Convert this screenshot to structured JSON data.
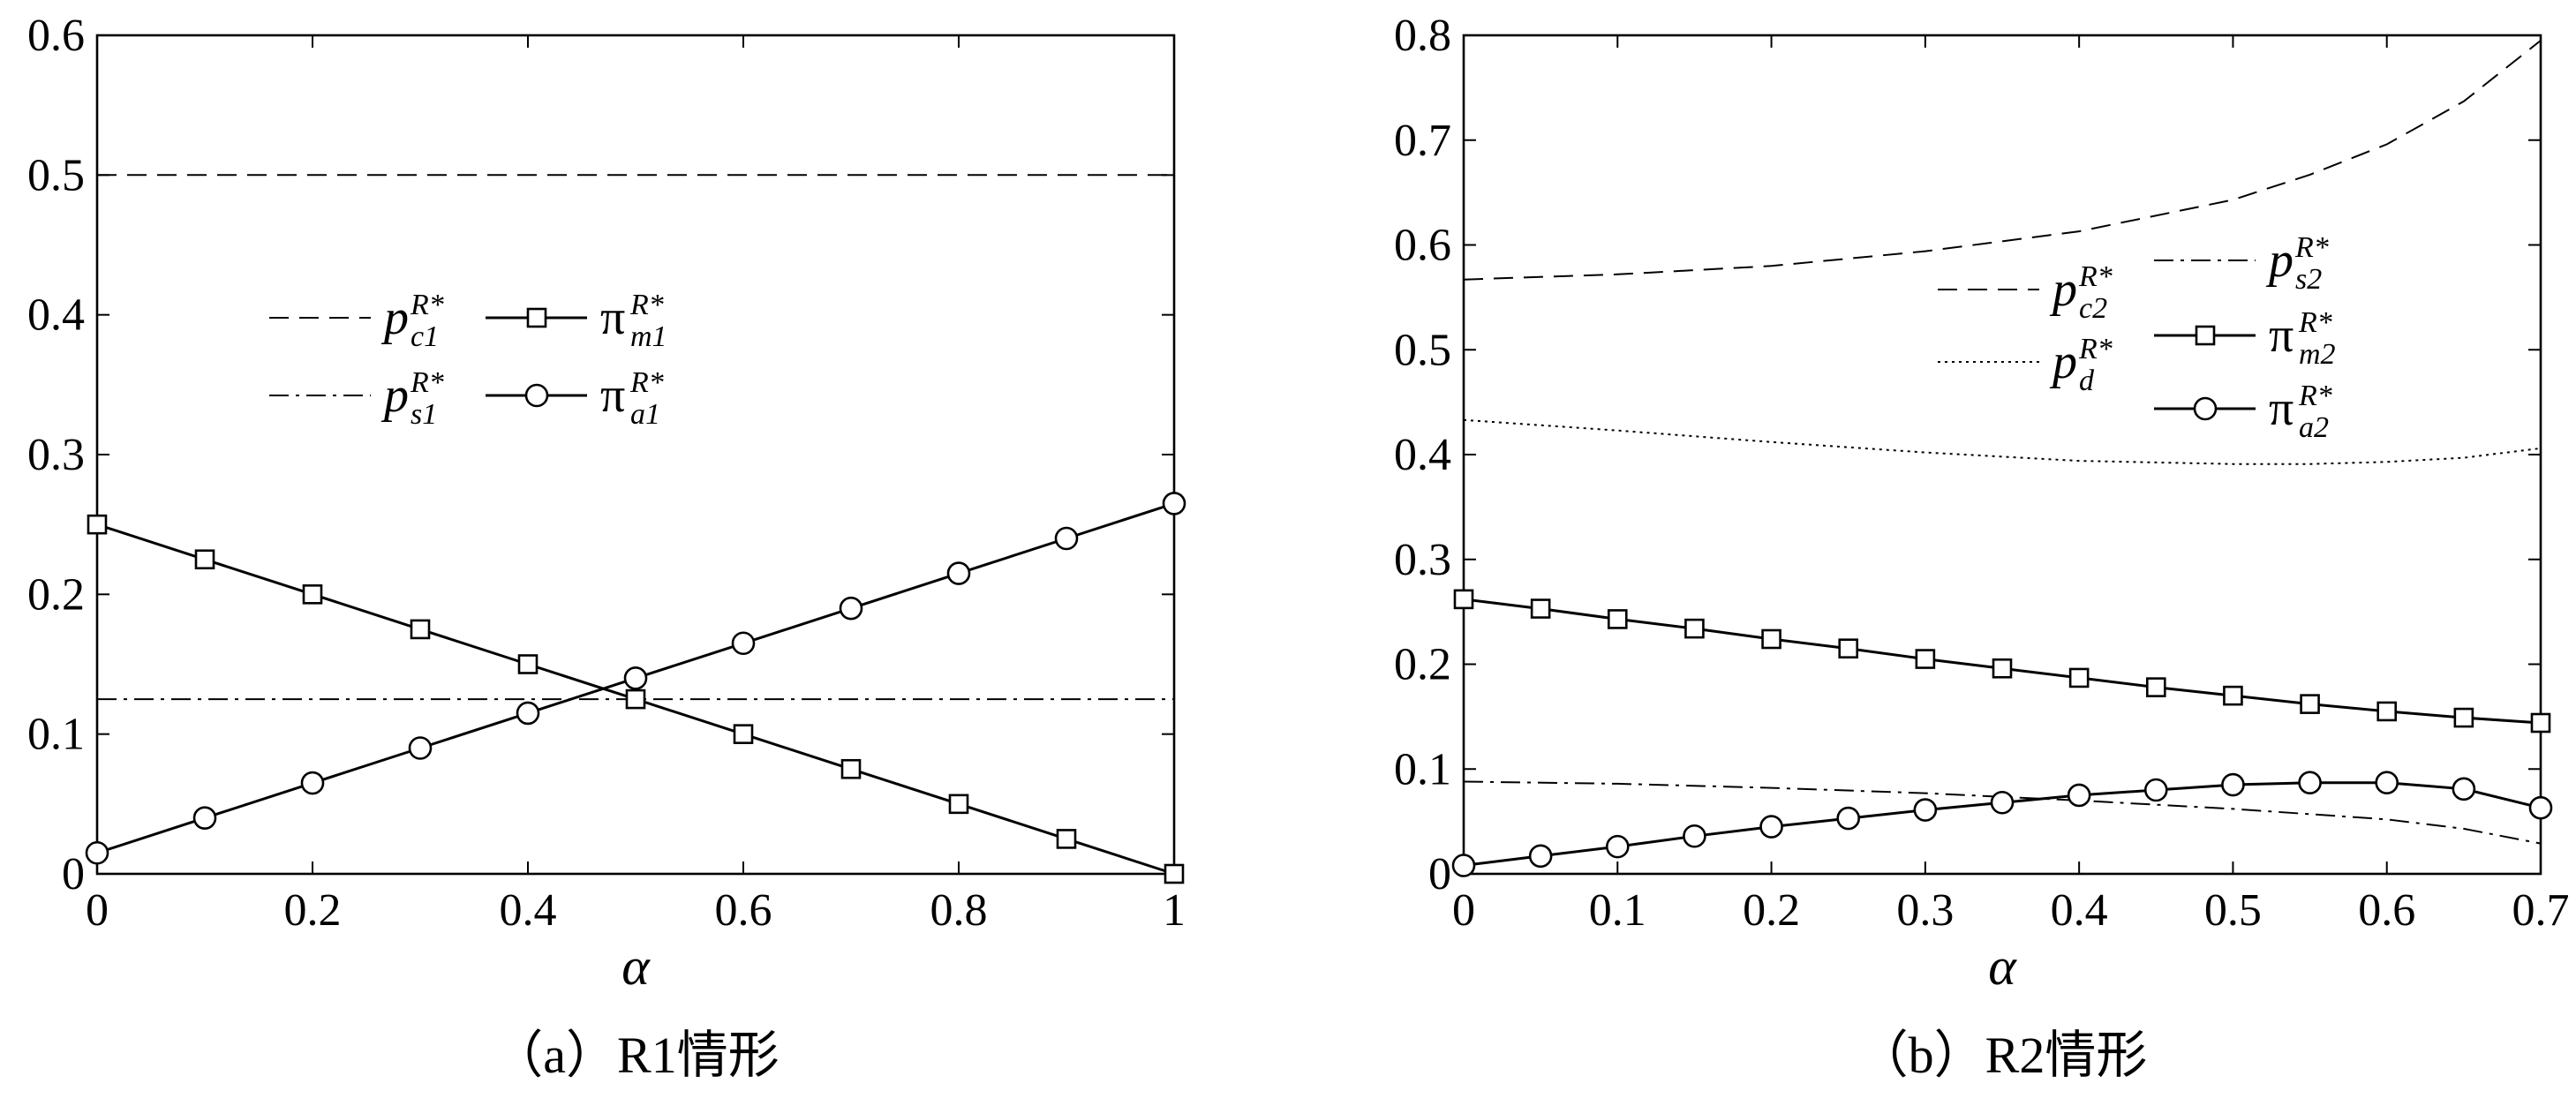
{
  "chart_data": [
    {
      "type": "line",
      "caption": "（a）R1情形",
      "xlabel": "α",
      "xlim": [
        0,
        1
      ],
      "ylim": [
        0,
        0.6
      ],
      "xticks": [
        "0",
        "0.2",
        "0.4",
        "0.6",
        "0.8",
        "1"
      ],
      "yticks": [
        "0",
        "0.1",
        "0.2",
        "0.3",
        "0.4",
        "0.5",
        "0.6"
      ],
      "grid": false,
      "legend_position": "center",
      "series": [
        {
          "name": "p_c1^R*",
          "style": "dashed",
          "marker": "none",
          "x": [
            0,
            1
          ],
          "y": [
            0.5,
            0.5
          ]
        },
        {
          "name": "p_s1^R*",
          "style": "dashdot",
          "marker": "none",
          "x": [
            0,
            1
          ],
          "y": [
            0.125,
            0.125
          ]
        },
        {
          "name": "π_m1^R*",
          "style": "solid",
          "marker": "square",
          "x": [
            0,
            0.1,
            0.2,
            0.3,
            0.4,
            0.5,
            0.6,
            0.7,
            0.8,
            0.9,
            1
          ],
          "y": [
            0.25,
            0.225,
            0.2,
            0.175,
            0.15,
            0.125,
            0.1,
            0.075,
            0.05,
            0.025,
            0
          ]
        },
        {
          "name": "π_a1^R*",
          "style": "solid",
          "marker": "circle",
          "x": [
            0,
            0.1,
            0.2,
            0.3,
            0.4,
            0.5,
            0.6,
            0.7,
            0.8,
            0.9,
            1
          ],
          "y": [
            0.015,
            0.04,
            0.065,
            0.09,
            0.115,
            0.14,
            0.165,
            0.19,
            0.215,
            0.24,
            0.265
          ]
        }
      ],
      "legend": [
        {
          "base": "p",
          "sub": "c1",
          "sup": "R*",
          "style": "dashed",
          "marker": "none"
        },
        {
          "base": "π",
          "sub": "m1",
          "sup": "R*",
          "style": "solid",
          "marker": "square"
        },
        {
          "base": "p",
          "sub": "s1",
          "sup": "R*",
          "style": "dashdot",
          "marker": "none"
        },
        {
          "base": "π",
          "sub": "a1",
          "sup": "R*",
          "style": "solid",
          "marker": "circle"
        }
      ]
    },
    {
      "type": "line",
      "caption": "（b）R2情形",
      "xlabel": "α",
      "xlim": [
        0,
        0.7
      ],
      "ylim": [
        0,
        0.8
      ],
      "xticks": [
        "0",
        "0.1",
        "0.2",
        "0.3",
        "0.4",
        "0.5",
        "0.6",
        "0.7"
      ],
      "yticks": [
        "0",
        "0.1",
        "0.2",
        "0.3",
        "0.4",
        "0.5",
        "0.6",
        "0.7",
        "0.8"
      ],
      "grid": false,
      "legend_position": "top-right",
      "series": [
        {
          "name": "p_c2^R*",
          "style": "dashed",
          "marker": "none",
          "x": [
            0,
            0.1,
            0.2,
            0.3,
            0.4,
            0.5,
            0.55,
            0.6,
            0.65,
            0.7
          ],
          "y": [
            0.567,
            0.572,
            0.58,
            0.594,
            0.613,
            0.643,
            0.667,
            0.696,
            0.737,
            0.795
          ]
        },
        {
          "name": "p_d^R*",
          "style": "dotted",
          "marker": "none",
          "x": [
            0,
            0.1,
            0.2,
            0.3,
            0.4,
            0.5,
            0.55,
            0.6,
            0.65,
            0.7
          ],
          "y": [
            0.433,
            0.423,
            0.412,
            0.402,
            0.394,
            0.391,
            0.391,
            0.393,
            0.397,
            0.406
          ]
        },
        {
          "name": "p_s2^R*",
          "style": "dashdot",
          "marker": "none",
          "x": [
            0,
            0.1,
            0.2,
            0.3,
            0.4,
            0.5,
            0.6,
            0.65,
            0.7
          ],
          "y": [
            0.088,
            0.086,
            0.082,
            0.077,
            0.07,
            0.062,
            0.052,
            0.043,
            0.029
          ]
        },
        {
          "name": "π_m2^R*",
          "style": "solid",
          "marker": "square",
          "x": [
            0,
            0.05,
            0.1,
            0.15,
            0.2,
            0.25,
            0.3,
            0.35,
            0.4,
            0.45,
            0.5,
            0.55,
            0.6,
            0.65,
            0.7
          ],
          "y": [
            0.262,
            0.253,
            0.243,
            0.234,
            0.224,
            0.215,
            0.205,
            0.196,
            0.187,
            0.178,
            0.17,
            0.162,
            0.155,
            0.149,
            0.144
          ]
        },
        {
          "name": "π_a2^R*",
          "style": "solid",
          "marker": "circle",
          "x": [
            0,
            0.05,
            0.1,
            0.15,
            0.2,
            0.25,
            0.3,
            0.35,
            0.4,
            0.45,
            0.5,
            0.55,
            0.6,
            0.65,
            0.7
          ],
          "y": [
            0.008,
            0.017,
            0.026,
            0.036,
            0.045,
            0.053,
            0.061,
            0.068,
            0.075,
            0.08,
            0.085,
            0.087,
            0.087,
            0.081,
            0.063
          ]
        }
      ],
      "legend": [
        {
          "base": "p",
          "sub": "s2",
          "sup": "R*",
          "style": "dashdot",
          "marker": "none"
        },
        {
          "base": "p",
          "sub": "c2",
          "sup": "R*",
          "style": "dashed",
          "marker": "none"
        },
        {
          "base": "π",
          "sub": "m2",
          "sup": "R*",
          "style": "solid",
          "marker": "square"
        },
        {
          "base": "p",
          "sub": "d",
          "sup": "R*",
          "style": "dotted",
          "marker": "none"
        },
        {
          "base": "π",
          "sub": "a2",
          "sup": "R*",
          "style": "solid",
          "marker": "circle"
        }
      ]
    }
  ]
}
